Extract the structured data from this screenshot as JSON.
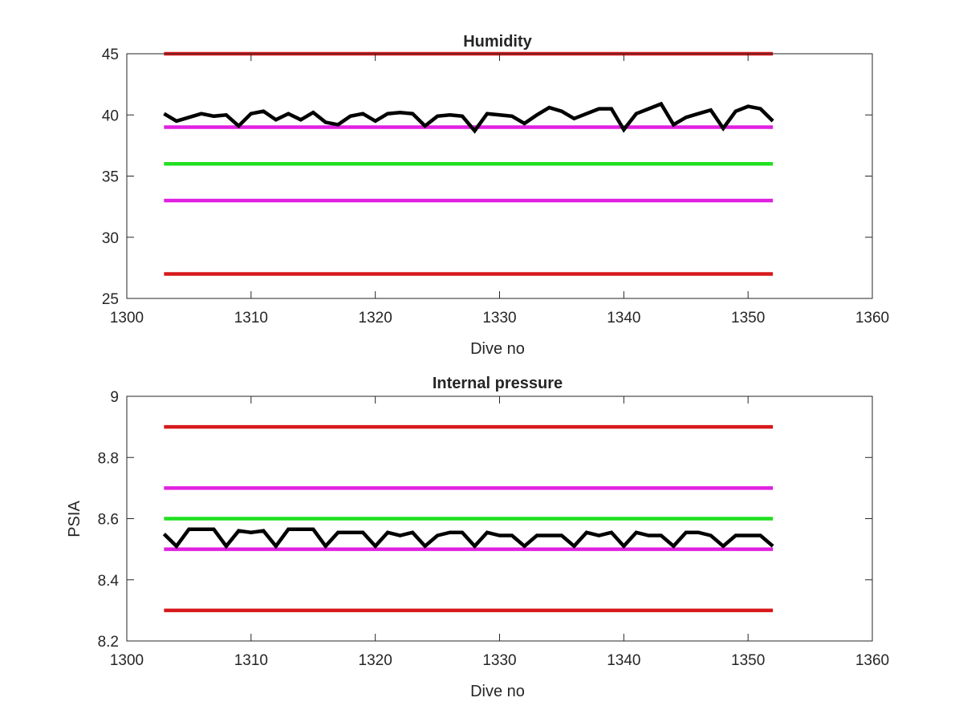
{
  "chart_data": [
    {
      "type": "line",
      "title": "Humidity",
      "xlabel": "Dive no",
      "ylabel": "",
      "xlim": [
        1300,
        1360
      ],
      "ylim": [
        25,
        45
      ],
      "xticks": [
        1300,
        1310,
        1320,
        1330,
        1340,
        1350,
        1360
      ],
      "yticks": [
        25,
        30,
        35,
        40,
        45
      ],
      "grid": false,
      "series": [
        {
          "color": "#000000",
          "x": [
            1303,
            1304,
            1305,
            1306,
            1307,
            1308,
            1309,
            1310,
            1311,
            1312,
            1313,
            1314,
            1315,
            1316,
            1317,
            1318,
            1319,
            1320,
            1321,
            1322,
            1323,
            1324,
            1325,
            1326,
            1327,
            1328,
            1329,
            1330,
            1331,
            1332,
            1333,
            1334,
            1335,
            1336,
            1337,
            1338,
            1339,
            1340,
            1341,
            1342,
            1343,
            1344,
            1345,
            1346,
            1347,
            1348,
            1349,
            1350,
            1351,
            1352
          ],
          "values": [
            40.1,
            39.5,
            39.8,
            40.1,
            39.9,
            40.0,
            39.1,
            40.1,
            40.3,
            39.6,
            40.1,
            39.6,
            40.2,
            39.4,
            39.2,
            39.9,
            40.1,
            39.5,
            40.1,
            40.2,
            40.1,
            39.1,
            39.9,
            40.0,
            39.9,
            38.7,
            40.1,
            40.0,
            39.9,
            39.3,
            40.0,
            40.6,
            40.3,
            39.7,
            40.1,
            40.5,
            40.5,
            38.8,
            40.1,
            40.5,
            40.9,
            39.2,
            39.8,
            40.1,
            40.4,
            38.9,
            40.3,
            40.7,
            40.5,
            39.5
          ]
        },
        {
          "color": "#d7191c",
          "x": [
            1303,
            1352
          ],
          "values": [
            45,
            45
          ]
        },
        {
          "color": "#e020e0",
          "x": [
            1303,
            1352
          ],
          "values": [
            39,
            39
          ]
        },
        {
          "color": "#20e020",
          "x": [
            1303,
            1352
          ],
          "values": [
            36,
            36
          ]
        },
        {
          "color": "#e020e0",
          "x": [
            1303,
            1352
          ],
          "values": [
            33,
            33
          ]
        },
        {
          "color": "#d7191c",
          "x": [
            1303,
            1352
          ],
          "values": [
            27,
            27
          ]
        }
      ]
    },
    {
      "type": "line",
      "title": "Internal pressure",
      "xlabel": "Dive no",
      "ylabel": "PSIA",
      "xlim": [
        1300,
        1360
      ],
      "ylim": [
        8.2,
        9
      ],
      "xticks": [
        1300,
        1310,
        1320,
        1330,
        1340,
        1350,
        1360
      ],
      "yticks": [
        8.2,
        8.4,
        8.6,
        8.8,
        9
      ],
      "grid": false,
      "series": [
        {
          "color": "#000000",
          "x": [
            1303,
            1304,
            1305,
            1306,
            1307,
            1308,
            1309,
            1310,
            1311,
            1312,
            1313,
            1314,
            1315,
            1316,
            1317,
            1318,
            1319,
            1320,
            1321,
            1322,
            1323,
            1324,
            1325,
            1326,
            1327,
            1328,
            1329,
            1330,
            1331,
            1332,
            1333,
            1334,
            1335,
            1336,
            1337,
            1338,
            1339,
            1340,
            1341,
            1342,
            1343,
            1344,
            1345,
            1346,
            1347,
            1348,
            1349,
            1350,
            1351,
            1352
          ],
          "values": [
            8.55,
            8.51,
            8.565,
            8.565,
            8.565,
            8.51,
            8.56,
            8.555,
            8.56,
            8.51,
            8.565,
            8.565,
            8.565,
            8.51,
            8.555,
            8.555,
            8.555,
            8.51,
            8.555,
            8.545,
            8.555,
            8.51,
            8.545,
            8.555,
            8.555,
            8.51,
            8.555,
            8.545,
            8.545,
            8.51,
            8.545,
            8.545,
            8.545,
            8.51,
            8.555,
            8.545,
            8.555,
            8.51,
            8.555,
            8.545,
            8.545,
            8.51,
            8.555,
            8.555,
            8.545,
            8.51,
            8.545,
            8.545,
            8.545,
            8.51
          ]
        },
        {
          "color": "#d7191c",
          "x": [
            1303,
            1352
          ],
          "values": [
            8.9,
            8.9
          ]
        },
        {
          "color": "#e020e0",
          "x": [
            1303,
            1352
          ],
          "values": [
            8.7,
            8.7
          ]
        },
        {
          "color": "#20e020",
          "x": [
            1303,
            1352
          ],
          "values": [
            8.6,
            8.6
          ]
        },
        {
          "color": "#e020e0",
          "x": [
            1303,
            1352
          ],
          "values": [
            8.5,
            8.5
          ]
        },
        {
          "color": "#d7191c",
          "x": [
            1303,
            1352
          ],
          "values": [
            8.3,
            8.3
          ]
        }
      ]
    }
  ]
}
